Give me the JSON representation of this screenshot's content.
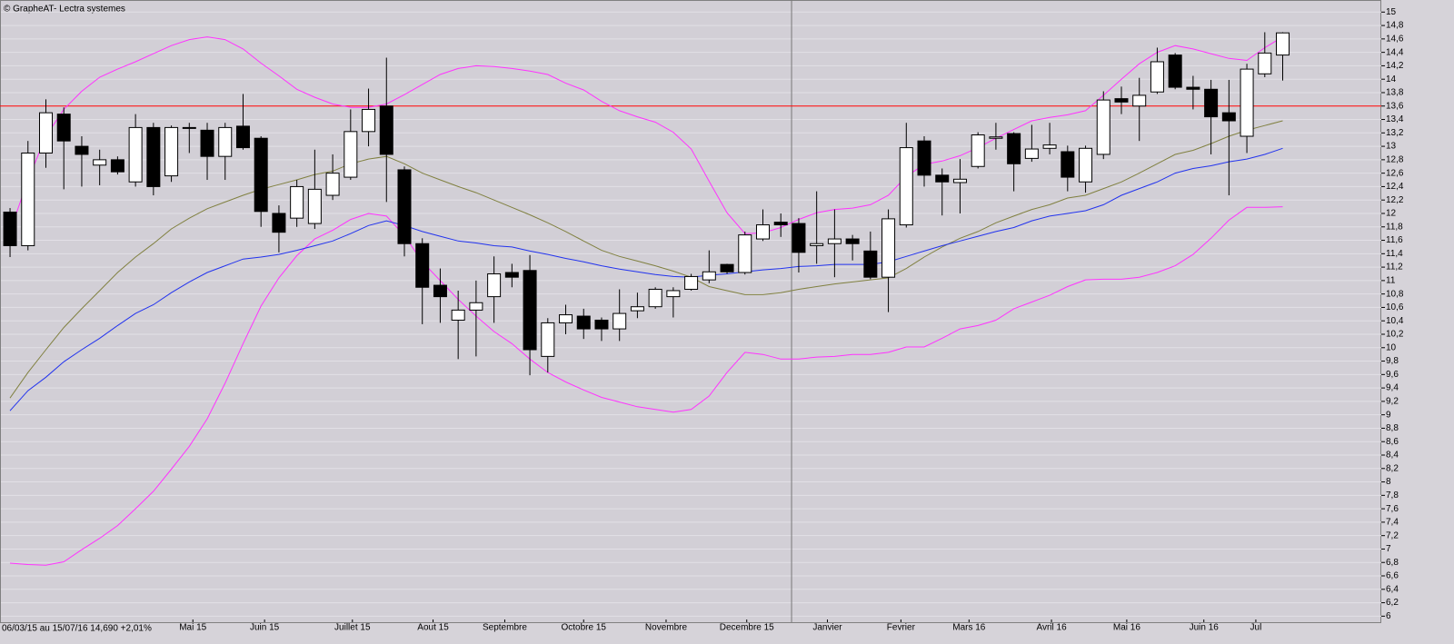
{
  "chart_data": {
    "type": "candlestick",
    "title": "© GrapheAT- Lectra systemes",
    "footer": "06/03/15 au 15/07/16 14,690 +2,01%",
    "open": [
      12.02,
      11.52,
      12.9,
      13.48,
      13.0,
      12.72,
      12.8,
      12.47,
      13.28,
      12.56,
      13.28,
      13.24,
      12.85,
      13.3,
      13.12,
      12.0,
      11.93,
      11.85,
      12.27,
      12.54,
      13.22,
      13.6,
      12.65,
      11.55,
      10.93,
      10.41,
      10.56,
      10.76,
      11.12,
      11.15,
      9.87,
      10.37,
      10.47,
      10.41,
      10.28,
      10.55,
      10.61,
      10.76,
      10.87,
      11.01,
      11.24,
      11.12,
      11.62,
      11.87,
      11.85,
      11.52,
      11.55,
      11.62,
      11.44,
      11.05,
      11.83,
      13.08,
      12.57,
      12.46,
      12.7,
      13.12,
      13.19,
      12.82,
      12.97,
      12.92,
      12.47,
      12.88,
      13.71,
      13.6,
      13.81,
      14.36,
      13.88,
      13.85,
      13.5,
      13.15,
      14.08,
      14.36
    ],
    "high": [
      12.08,
      13.08,
      13.7,
      13.58,
      13.15,
      12.95,
      12.85,
      13.48,
      13.35,
      13.31,
      13.35,
      13.35,
      13.35,
      13.78,
      13.15,
      12.12,
      12.5,
      12.95,
      12.88,
      13.55,
      13.86,
      14.32,
      12.7,
      11.63,
      11.18,
      10.85,
      11.0,
      11.36,
      11.25,
      11.38,
      10.44,
      10.64,
      10.58,
      10.45,
      10.87,
      10.82,
      10.9,
      10.9,
      11.1,
      11.45,
      11.25,
      11.73,
      12.06,
      12.0,
      11.93,
      12.33,
      12.06,
      11.68,
      11.73,
      12.06,
      13.35,
      13.15,
      12.67,
      12.81,
      13.21,
      13.35,
      13.21,
      13.32,
      13.35,
      13.01,
      13.01,
      13.82,
      13.89,
      14.02,
      14.47,
      14.39,
      14.05,
      13.99,
      13.99,
      14.23,
      14.7,
      14.7
    ],
    "low": [
      11.35,
      11.45,
      12.68,
      12.36,
      12.4,
      12.42,
      12.58,
      12.4,
      12.27,
      12.47,
      12.9,
      12.5,
      12.5,
      12.95,
      11.8,
      11.42,
      11.8,
      11.77,
      12.2,
      12.5,
      13.0,
      12.17,
      11.36,
      10.35,
      10.37,
      9.83,
      9.87,
      10.37,
      10.9,
      9.59,
      9.63,
      10.2,
      10.13,
      10.1,
      10.1,
      10.44,
      10.58,
      10.45,
      10.85,
      10.96,
      11.1,
      11.09,
      11.59,
      11.65,
      11.12,
      11.25,
      11.05,
      11.3,
      11.02,
      10.53,
      11.79,
      12.4,
      11.97,
      12.0,
      12.67,
      12.95,
      12.33,
      12.77,
      12.88,
      12.33,
      12.31,
      12.81,
      13.48,
      13.08,
      13.78,
      13.85,
      13.55,
      12.88,
      12.27,
      12.9,
      14.03,
      13.98
    ],
    "close": [
      11.52,
      12.9,
      13.5,
      13.08,
      12.88,
      12.8,
      12.62,
      13.28,
      12.4,
      13.28,
      13.28,
      12.85,
      13.28,
      12.98,
      12.03,
      11.72,
      12.4,
      12.36,
      12.6,
      13.22,
      13.55,
      12.88,
      11.55,
      10.9,
      10.76,
      10.56,
      10.67,
      11.1,
      11.05,
      9.97,
      10.37,
      10.49,
      10.28,
      10.28,
      10.51,
      10.61,
      10.87,
      10.85,
      11.06,
      11.13,
      11.13,
      11.68,
      11.83,
      11.83,
      11.42,
      11.55,
      11.62,
      11.55,
      11.05,
      11.92,
      12.98,
      12.57,
      12.47,
      12.51,
      13.17,
      13.14,
      12.74,
      12.96,
      13.02,
      12.54,
      12.97,
      13.69,
      13.66,
      13.76,
      14.26,
      13.88,
      13.85,
      13.44,
      13.38,
      14.15,
      14.39,
      14.69
    ],
    "series": [
      {
        "color": "#ff33ff",
        "values": [
          11.73,
          12.5,
          13.15,
          13.55,
          13.82,
          14.03,
          14.15,
          14.26,
          14.38,
          14.5,
          14.59,
          14.63,
          14.59,
          14.45,
          14.24,
          14.05,
          13.85,
          13.73,
          13.63,
          13.58,
          13.58,
          13.63,
          13.77,
          13.92,
          14.07,
          14.16,
          14.2,
          14.19,
          14.16,
          14.12,
          14.07,
          13.94,
          13.84,
          13.67,
          13.53,
          13.44,
          13.36,
          13.21,
          12.96,
          12.48,
          12.01,
          11.7,
          11.71,
          11.79,
          11.91,
          12.01,
          12.06,
          12.08,
          12.13,
          12.27,
          12.55,
          12.73,
          12.78,
          12.86,
          12.98,
          13.12,
          13.25,
          13.38,
          13.43,
          13.47,
          13.53,
          13.76,
          14.0,
          14.23,
          14.4,
          14.5,
          14.45,
          14.38,
          14.31,
          14.28,
          14.47,
          14.63
        ]
      },
      {
        "color": "#ff33ff",
        "values": [
          6.79,
          6.77,
          6.76,
          6.81,
          6.99,
          7.16,
          7.35,
          7.6,
          7.86,
          8.19,
          8.53,
          8.94,
          9.47,
          10.06,
          10.62,
          11.04,
          11.37,
          11.62,
          11.75,
          11.91,
          12.0,
          11.96,
          11.67,
          11.28,
          11.0,
          10.72,
          10.47,
          10.24,
          10.06,
          9.83,
          9.63,
          9.49,
          9.37,
          9.26,
          9.19,
          9.12,
          9.08,
          9.04,
          9.08,
          9.28,
          9.63,
          9.93,
          9.9,
          9.83,
          9.83,
          9.86,
          9.87,
          9.9,
          9.9,
          9.93,
          10.01,
          10.01,
          10.14,
          10.28,
          10.33,
          10.41,
          10.58,
          10.68,
          10.78,
          10.91,
          11.01,
          11.02,
          11.02,
          11.05,
          11.12,
          11.22,
          11.39,
          11.63,
          11.9,
          12.09,
          12.09,
          12.1
        ]
      },
      {
        "color": "#808040",
        "values": [
          9.25,
          9.63,
          9.97,
          10.3,
          10.58,
          10.85,
          11.12,
          11.35,
          11.55,
          11.77,
          11.93,
          12.07,
          12.17,
          12.27,
          12.36,
          12.43,
          12.5,
          12.58,
          12.63,
          12.74,
          12.81,
          12.85,
          12.74,
          12.6,
          12.5,
          12.4,
          12.31,
          12.2,
          12.09,
          11.98,
          11.86,
          11.73,
          11.59,
          11.45,
          11.36,
          11.29,
          11.22,
          11.14,
          11.05,
          10.91,
          10.85,
          10.79,
          10.79,
          10.82,
          10.87,
          10.91,
          10.95,
          10.98,
          11.01,
          11.04,
          11.18,
          11.35,
          11.5,
          11.63,
          11.73,
          11.86,
          11.96,
          12.06,
          12.13,
          12.23,
          12.27,
          12.37,
          12.47,
          12.6,
          12.74,
          12.88,
          12.94,
          13.04,
          13.15,
          13.24,
          13.31,
          13.38
        ]
      },
      {
        "color": "#2233ee",
        "values": [
          9.06,
          9.36,
          9.56,
          9.79,
          9.97,
          10.14,
          10.33,
          10.51,
          10.64,
          10.82,
          10.98,
          11.12,
          11.22,
          11.32,
          11.35,
          11.39,
          11.45,
          11.52,
          11.59,
          11.7,
          11.82,
          11.89,
          11.82,
          11.73,
          11.66,
          11.59,
          11.56,
          11.52,
          11.5,
          11.44,
          11.39,
          11.33,
          11.28,
          11.22,
          11.17,
          11.13,
          11.09,
          11.06,
          11.05,
          11.08,
          11.1,
          11.13,
          11.16,
          11.18,
          11.21,
          11.22,
          11.24,
          11.24,
          11.24,
          11.28,
          11.36,
          11.44,
          11.52,
          11.59,
          11.66,
          11.73,
          11.79,
          11.89,
          11.96,
          12.0,
          12.04,
          12.13,
          12.27,
          12.37,
          12.47,
          12.6,
          12.67,
          12.71,
          12.77,
          12.81,
          12.88,
          12.97
        ]
      }
    ],
    "hline": {
      "value": 13.6,
      "color": "#ff0000"
    },
    "vline": {
      "value": 43.6,
      "color": "#777777"
    },
    "xlim": [
      -0.56,
      76.5
    ],
    "xticks": [
      {
        "value": 10.2,
        "label": "Mai 15"
      },
      {
        "value": 14.2,
        "label": "Juin 15"
      },
      {
        "value": 19.1,
        "label": "Juillet 15"
      },
      {
        "value": 23.6,
        "label": "Aout 15"
      },
      {
        "value": 27.6,
        "label": "Septembre"
      },
      {
        "value": 32.0,
        "label": "Octobre 15"
      },
      {
        "value": 36.6,
        "label": "Novembre"
      },
      {
        "value": 41.1,
        "label": "Decembre 15"
      },
      {
        "value": 45.6,
        "label": "Janvier"
      },
      {
        "value": 49.7,
        "label": "Fevrier"
      },
      {
        "value": 53.5,
        "label": "Mars 16"
      },
      {
        "value": 58.1,
        "label": "Avril 16"
      },
      {
        "value": 62.3,
        "label": "Mai 16"
      },
      {
        "value": 66.6,
        "label": "Juin 16"
      },
      {
        "value": 69.5,
        "label": "Jul"
      }
    ],
    "ylim": [
      5.91,
      15.18
    ],
    "yticks": [
      6,
      {
        "value": 6.2,
        "label": "6,2"
      },
      {
        "value": 6.4,
        "label": "6,4"
      },
      {
        "value": 6.6,
        "label": "6,6"
      },
      {
        "value": 6.8,
        "label": "6,8"
      },
      7,
      {
        "value": 7.2,
        "label": "7,2"
      },
      {
        "value": 7.4,
        "label": "7,4"
      },
      {
        "value": 7.6,
        "label": "7,6"
      },
      {
        "value": 7.8,
        "label": "7,8"
      },
      8,
      {
        "value": 8.2,
        "label": "8,2"
      },
      {
        "value": 8.4,
        "label": "8,4"
      },
      {
        "value": 8.6,
        "label": "8,6"
      },
      {
        "value": 8.8,
        "label": "8,8"
      },
      9,
      {
        "value": 9.2,
        "label": "9,2"
      },
      {
        "value": 9.4,
        "label": "9,4"
      },
      {
        "value": 9.6,
        "label": "9,6"
      },
      {
        "value": 9.8,
        "label": "9,8"
      },
      10,
      {
        "value": 10.2,
        "label": "10,2"
      },
      {
        "value": 10.4,
        "label": "10,4"
      },
      {
        "value": 10.6,
        "label": "10,6"
      },
      {
        "value": 10.8,
        "label": "10,8"
      },
      11,
      {
        "value": 11.2,
        "label": "11,2"
      },
      {
        "value": 11.4,
        "label": "11,4"
      },
      {
        "value": 11.6,
        "label": "11,6"
      },
      {
        "value": 11.8,
        "label": "11,8"
      },
      12,
      {
        "value": 12.2,
        "label": "12,2"
      },
      {
        "value": 12.4,
        "label": "12,4"
      },
      {
        "value": 12.6,
        "label": "12,6"
      },
      {
        "value": 12.8,
        "label": "12,8"
      },
      13,
      {
        "value": 13.2,
        "label": "13,2"
      },
      {
        "value": 13.4,
        "label": "13,4"
      },
      {
        "value": 13.6,
        "label": "13,6"
      },
      {
        "value": 13.8,
        "label": "13,8"
      },
      14,
      {
        "value": 14.2,
        "label": "14,2"
      },
      {
        "value": 14.4,
        "label": "14,4"
      },
      {
        "value": 14.6,
        "label": "14,6"
      },
      {
        "value": 14.8,
        "label": "14,8"
      },
      15
    ],
    "grid": true
  }
}
